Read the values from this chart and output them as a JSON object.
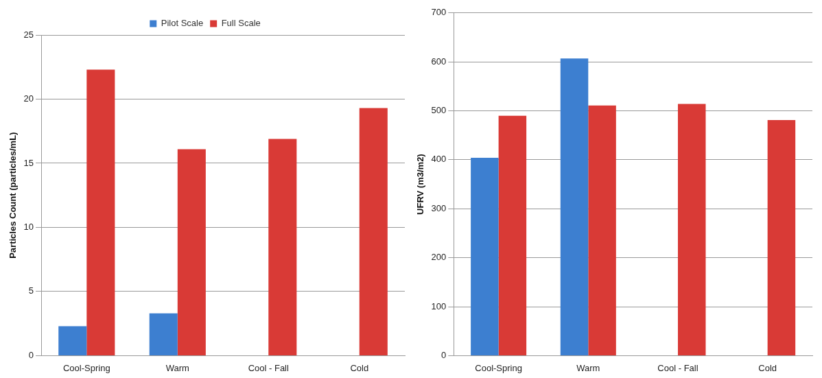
{
  "chart_data": [
    {
      "type": "bar",
      "ylabel": "Particles Count (particles/mL)",
      "categories": [
        "Cool-Spring",
        "Warm",
        "Cool - Fall",
        "Cold"
      ],
      "ylim": [
        0,
        25
      ],
      "yticks": [
        0,
        5,
        10,
        15,
        20,
        25
      ],
      "grid": "y",
      "legend": "top",
      "series": [
        {
          "name": "Pilot Scale",
          "color": "#3d7fd0",
          "values": [
            2.3,
            3.3,
            null,
            null
          ]
        },
        {
          "name": "Full Scale",
          "color": "#d93a36",
          "values": [
            22.3,
            16.1,
            16.9,
            19.3
          ]
        }
      ]
    },
    {
      "type": "bar",
      "ylabel": "UFRV (m3/m2)",
      "categories": [
        "Cool-Spring",
        "Warm",
        "Cool - Fall",
        "Cold"
      ],
      "ylim": [
        0,
        700
      ],
      "yticks": [
        0,
        100,
        200,
        300,
        400,
        500,
        600,
        700
      ],
      "grid": "y",
      "series": [
        {
          "color": "#3d7fd0",
          "values": [
            404,
            607,
            null,
            null
          ]
        },
        {
          "color": "#d93a36",
          "values": [
            490,
            511,
            514,
            481
          ]
        }
      ]
    }
  ]
}
